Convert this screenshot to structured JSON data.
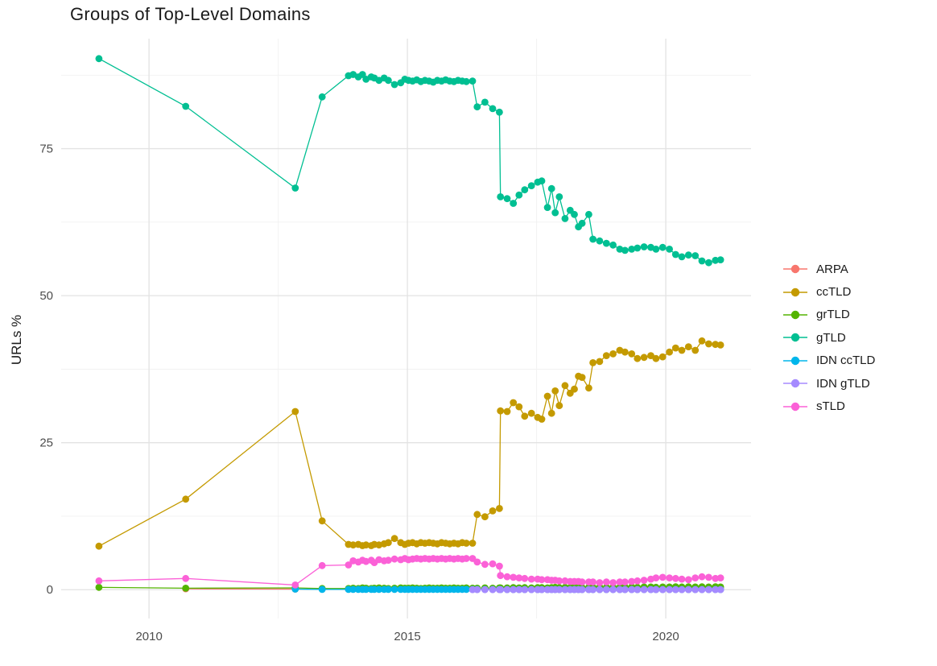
{
  "chart_data": {
    "type": "line",
    "title": "Groups of Top-Level Domains",
    "xlabel": "",
    "ylabel": "URLs %",
    "grid": true,
    "legend_position": "right",
    "x_axis": {
      "ticks": [
        2010,
        2015,
        2020
      ],
      "tick_labels": [
        "2010",
        "2015",
        "2020"
      ],
      "minor_ticks": [
        2012.5,
        2017.5
      ],
      "domain": [
        2008.3,
        2021.65
      ]
    },
    "y_axis": {
      "ticks": [
        0,
        25,
        50,
        75
      ],
      "tick_labels": [
        "0",
        "25",
        "50",
        "75"
      ],
      "minor_ticks": [
        12.5,
        37.5,
        62.5,
        87.5
      ],
      "domain": [
        -4.9,
        93.7
      ]
    },
    "series": [
      {
        "name": "ARPA",
        "color": "#F8766D",
        "x": [
          2010.71,
          2012.83,
          2013.35,
          2013.86,
          2013.95,
          2014.05,
          2014.13,
          2014.2,
          2014.3,
          2014.36,
          2014.45,
          2014.55,
          2014.63,
          2014.75,
          2014.87,
          2014.95,
          2015.02,
          2015.1,
          2015.18,
          2015.26,
          2015.34,
          2015.42,
          2015.5,
          2015.58,
          2015.66,
          2015.74,
          2015.82,
          2015.9,
          2015.98,
          2016.06,
          2016.14,
          2016.26,
          2016.35,
          2016.5,
          2016.65,
          2016.78,
          2016.8,
          2016.93,
          2017.05,
          2017.16,
          2017.27,
          2017.4,
          2017.52,
          2017.6,
          2017.71,
          2017.79,
          2017.86,
          2017.94,
          2018.05,
          2018.15,
          2018.23,
          2018.31,
          2018.38,
          2018.51,
          2018.59,
          2018.72,
          2018.85,
          2018.98,
          2019.11,
          2019.21,
          2019.34,
          2019.45,
          2019.58,
          2019.71,
          2019.81,
          2019.94,
          2020.07,
          2020.19,
          2020.31,
          2020.44,
          2020.57,
          2020.7,
          2020.83,
          2020.96,
          2021.06
        ],
        "y": [
          0.15,
          0.1,
          0.1,
          0.07,
          0.07,
          0.07,
          0.07,
          0.07,
          0.07,
          0.07,
          0.07,
          0.07,
          0.07,
          0.07,
          0.07,
          0.07,
          0.07,
          0.07,
          0.07,
          0.07,
          0.07,
          0.07,
          0.07,
          0.07,
          0.07,
          0.07,
          0.07,
          0.07,
          0.07,
          0.07,
          0.07,
          0.07,
          0.07,
          0.07,
          0.07,
          0.07,
          0.05,
          0.05,
          0.05,
          0.05,
          0.05,
          0.05,
          0.05,
          0.05,
          0.05,
          0.05,
          0.05,
          0.05,
          0.05,
          0.05,
          0.05,
          0.05,
          0.05,
          0.05,
          0.05,
          0.05,
          0.05,
          0.05,
          0.05,
          0.05,
          0.05,
          0.05,
          0.05,
          0.05,
          0.05,
          0.05,
          0.05,
          0.05,
          0.05,
          0.05,
          0.05,
          0.05,
          0.05,
          0.05,
          0.05
        ]
      },
      {
        "name": "ccTLD",
        "color": "#C49A00",
        "x": [
          2009.03,
          2010.71,
          2012.83,
          2013.35,
          2013.86,
          2013.95,
          2014.05,
          2014.13,
          2014.2,
          2014.3,
          2014.36,
          2014.45,
          2014.55,
          2014.63,
          2014.75,
          2014.87,
          2014.95,
          2015.02,
          2015.1,
          2015.18,
          2015.26,
          2015.34,
          2015.42,
          2015.5,
          2015.58,
          2015.66,
          2015.74,
          2015.82,
          2015.9,
          2015.98,
          2016.06,
          2016.14,
          2016.26,
          2016.35,
          2016.5,
          2016.65,
          2016.78,
          2016.8,
          2016.93,
          2017.05,
          2017.16,
          2017.27,
          2017.4,
          2017.52,
          2017.6,
          2017.71,
          2017.79,
          2017.86,
          2017.94,
          2018.05,
          2018.15,
          2018.23,
          2018.31,
          2018.38,
          2018.51,
          2018.59,
          2018.72,
          2018.85,
          2018.98,
          2019.11,
          2019.21,
          2019.34,
          2019.45,
          2019.58,
          2019.71,
          2019.81,
          2019.94,
          2020.07,
          2020.19,
          2020.31,
          2020.44,
          2020.57,
          2020.7,
          2020.83,
          2020.96,
          2021.06
        ],
        "y": [
          7.4,
          15.4,
          30.3,
          11.7,
          7.7,
          7.6,
          7.7,
          7.5,
          7.6,
          7.5,
          7.7,
          7.6,
          7.8,
          8.0,
          8.7,
          8.0,
          7.7,
          7.9,
          8.0,
          7.8,
          8.0,
          7.9,
          8.0,
          7.9,
          7.8,
          8.0,
          7.9,
          7.8,
          7.9,
          7.8,
          8.0,
          7.9,
          7.9,
          12.8,
          12.4,
          13.4,
          13.8,
          30.4,
          30.3,
          31.8,
          31.1,
          29.5,
          30.0,
          29.3,
          29.0,
          32.9,
          30.0,
          33.8,
          31.3,
          34.7,
          33.4,
          34.1,
          36.3,
          36.1,
          34.3,
          38.6,
          38.8,
          39.8,
          40.1,
          40.7,
          40.4,
          40.1,
          39.3,
          39.5,
          39.8,
          39.3,
          39.6,
          40.4,
          41.1,
          40.7,
          41.3,
          40.7,
          42.3,
          41.8,
          41.7,
          41.6
        ]
      },
      {
        "name": "grTLD",
        "color": "#53B400",
        "x": [
          2009.03,
          2010.71,
          2012.83,
          2013.35,
          2013.86,
          2013.95,
          2014.05,
          2014.13,
          2014.2,
          2014.3,
          2014.36,
          2014.45,
          2014.55,
          2014.63,
          2014.75,
          2014.87,
          2014.95,
          2015.02,
          2015.1,
          2015.18,
          2015.26,
          2015.34,
          2015.42,
          2015.5,
          2015.58,
          2015.66,
          2015.74,
          2015.82,
          2015.9,
          2015.98,
          2016.06,
          2016.14,
          2016.26,
          2016.35,
          2016.5,
          2016.65,
          2016.78,
          2016.8,
          2016.93,
          2017.05,
          2017.16,
          2017.27,
          2017.4,
          2017.52,
          2017.6,
          2017.71,
          2017.79,
          2017.86,
          2017.94,
          2018.05,
          2018.15,
          2018.23,
          2018.31,
          2018.38,
          2018.51,
          2018.59,
          2018.72,
          2018.85,
          2018.98,
          2019.11,
          2019.21,
          2019.34,
          2019.45,
          2019.58,
          2019.71,
          2019.81,
          2019.94,
          2020.07,
          2020.19,
          2020.31,
          2020.44,
          2020.57,
          2020.7,
          2020.83,
          2020.96,
          2021.06
        ],
        "y": [
          0.4,
          0.25,
          0.3,
          0.2,
          0.2,
          0.25,
          0.2,
          0.3,
          0.25,
          0.2,
          0.25,
          0.3,
          0.25,
          0.2,
          0.25,
          0.3,
          0.25,
          0.25,
          0.3,
          0.25,
          0.2,
          0.25,
          0.3,
          0.25,
          0.25,
          0.3,
          0.25,
          0.25,
          0.3,
          0.25,
          0.25,
          0.3,
          0.25,
          0.25,
          0.3,
          0.25,
          0.3,
          0.3,
          0.3,
          0.35,
          0.3,
          0.35,
          0.3,
          0.35,
          0.35,
          0.3,
          0.35,
          0.4,
          0.35,
          0.4,
          0.35,
          0.4,
          0.4,
          0.35,
          0.4,
          0.4,
          0.45,
          0.4,
          0.45,
          0.4,
          0.45,
          0.45,
          0.4,
          0.45,
          0.45,
          0.4,
          0.45,
          0.45,
          0.5,
          0.45,
          0.5,
          0.45,
          0.5,
          0.45,
          0.5,
          0.45
        ]
      },
      {
        "name": "gTLD",
        "color": "#00BF92",
        "x": [
          2009.03,
          2010.71,
          2012.83,
          2013.35,
          2013.86,
          2013.95,
          2014.05,
          2014.13,
          2014.2,
          2014.3,
          2014.36,
          2014.45,
          2014.55,
          2014.63,
          2014.75,
          2014.87,
          2014.95,
          2015.02,
          2015.1,
          2015.18,
          2015.26,
          2015.34,
          2015.42,
          2015.5,
          2015.58,
          2015.66,
          2015.74,
          2015.82,
          2015.9,
          2015.98,
          2016.06,
          2016.14,
          2016.26,
          2016.35,
          2016.5,
          2016.65,
          2016.78,
          2016.8,
          2016.93,
          2017.05,
          2017.16,
          2017.27,
          2017.4,
          2017.52,
          2017.6,
          2017.71,
          2017.79,
          2017.86,
          2017.94,
          2018.05,
          2018.15,
          2018.23,
          2018.31,
          2018.38,
          2018.51,
          2018.59,
          2018.72,
          2018.85,
          2018.98,
          2019.11,
          2019.21,
          2019.34,
          2019.45,
          2019.58,
          2019.71,
          2019.81,
          2019.94,
          2020.07,
          2020.19,
          2020.31,
          2020.44,
          2020.57,
          2020.7,
          2020.83,
          2020.96,
          2021.06
        ],
        "y": [
          90.3,
          82.2,
          68.3,
          83.8,
          87.4,
          87.6,
          87.2,
          87.6,
          86.8,
          87.2,
          87.0,
          86.6,
          87.0,
          86.6,
          85.9,
          86.2,
          86.8,
          86.6,
          86.5,
          86.7,
          86.4,
          86.6,
          86.5,
          86.3,
          86.6,
          86.5,
          86.7,
          86.5,
          86.4,
          86.6,
          86.5,
          86.4,
          86.5,
          82.1,
          82.9,
          81.8,
          81.2,
          66.8,
          66.5,
          65.7,
          67.1,
          68.0,
          68.7,
          69.3,
          69.5,
          65.0,
          68.2,
          64.1,
          66.8,
          63.1,
          64.5,
          63.8,
          61.7,
          62.3,
          63.8,
          59.6,
          59.3,
          58.9,
          58.6,
          57.9,
          57.7,
          57.9,
          58.1,
          58.3,
          58.2,
          57.9,
          58.2,
          57.9,
          57.0,
          56.6,
          56.9,
          56.8,
          55.9,
          55.6,
          56.0,
          56.1
        ]
      },
      {
        "name": "IDN ccTLD",
        "color": "#00B6EB",
        "x": [
          2012.83,
          2013.35,
          2013.86,
          2013.95,
          2014.05,
          2014.13,
          2014.2,
          2014.3,
          2014.36,
          2014.45,
          2014.55,
          2014.63,
          2014.75,
          2014.87,
          2014.95,
          2015.02,
          2015.1,
          2015.18,
          2015.26,
          2015.34,
          2015.42,
          2015.5,
          2015.58,
          2015.66,
          2015.74,
          2015.82,
          2015.9,
          2015.98,
          2016.06,
          2016.14,
          2016.26,
          2016.35,
          2016.5,
          2016.65,
          2016.78,
          2016.8,
          2016.93,
          2017.05,
          2017.16,
          2017.27,
          2017.4,
          2017.52,
          2017.6,
          2017.71,
          2017.79,
          2017.86,
          2017.94,
          2018.05,
          2018.15,
          2018.23,
          2018.31,
          2018.38,
          2018.51,
          2018.59,
          2018.72,
          2018.85,
          2018.98,
          2019.11,
          2019.21,
          2019.34,
          2019.45,
          2019.58,
          2019.71,
          2019.81,
          2019.94,
          2020.07,
          2020.19,
          2020.31,
          2020.44,
          2020.57,
          2020.7,
          2020.83,
          2020.96,
          2021.06
        ],
        "y": [
          0.1,
          0.05,
          0.04,
          0.04,
          0.04,
          0.04,
          0.04,
          0.04,
          0.04,
          0.04,
          0.04,
          0.04,
          0.04,
          0.04,
          0.04,
          0.04,
          0.04,
          0.04,
          0.04,
          0.04,
          0.04,
          0.04,
          0.04,
          0.04,
          0.04,
          0.04,
          0.04,
          0.04,
          0.04,
          0.04,
          0.04,
          0.04,
          0.04,
          0.04,
          0.04,
          0.03,
          0.03,
          0.03,
          0.03,
          0.03,
          0.03,
          0.03,
          0.03,
          0.03,
          0.03,
          0.03,
          0.03,
          0.03,
          0.03,
          0.03,
          0.03,
          0.03,
          0.03,
          0.03,
          0.03,
          0.03,
          0.03,
          0.03,
          0.03,
          0.03,
          0.03,
          0.03,
          0.03,
          0.03,
          0.03,
          0.03,
          0.03,
          0.03,
          0.03,
          0.03,
          0.03,
          0.03,
          0.03,
          0.03
        ]
      },
      {
        "name": "IDN gTLD",
        "color": "#A58AFF",
        "x": [
          2016.26,
          2016.35,
          2016.5,
          2016.65,
          2016.78,
          2016.8,
          2016.93,
          2017.05,
          2017.16,
          2017.27,
          2017.4,
          2017.52,
          2017.6,
          2017.71,
          2017.79,
          2017.86,
          2017.94,
          2018.05,
          2018.15,
          2018.23,
          2018.31,
          2018.38,
          2018.51,
          2018.59,
          2018.72,
          2018.85,
          2018.98,
          2019.11,
          2019.21,
          2019.34,
          2019.45,
          2019.58,
          2019.71,
          2019.81,
          2019.94,
          2020.07,
          2020.19,
          2020.31,
          2020.44,
          2020.57,
          2020.7,
          2020.83,
          2020.96,
          2021.06
        ],
        "y": [
          0.02,
          0.02,
          0.02,
          0.02,
          0.02,
          0.02,
          0.02,
          0.02,
          0.02,
          0.02,
          0.02,
          0.02,
          0.02,
          0.02,
          0.02,
          0.02,
          0.02,
          0.02,
          0.02,
          0.02,
          0.02,
          0.02,
          0.02,
          0.02,
          0.02,
          0.02,
          0.02,
          0.02,
          0.02,
          0.02,
          0.02,
          0.02,
          0.02,
          0.02,
          0.02,
          0.02,
          0.02,
          0.02,
          0.02,
          0.02,
          0.02,
          0.02,
          0.02,
          0.02
        ]
      },
      {
        "name": "sTLD",
        "color": "#FB61D7",
        "x": [
          2009.03,
          2010.71,
          2012.83,
          2013.35,
          2013.86,
          2013.95,
          2014.05,
          2014.13,
          2014.2,
          2014.3,
          2014.36,
          2014.45,
          2014.55,
          2014.63,
          2014.75,
          2014.87,
          2014.95,
          2015.02,
          2015.1,
          2015.18,
          2015.26,
          2015.34,
          2015.42,
          2015.5,
          2015.58,
          2015.66,
          2015.74,
          2015.82,
          2015.9,
          2015.98,
          2016.06,
          2016.14,
          2016.26,
          2016.35,
          2016.5,
          2016.65,
          2016.78,
          2016.8,
          2016.93,
          2017.05,
          2017.16,
          2017.27,
          2017.4,
          2017.52,
          2017.6,
          2017.71,
          2017.79,
          2017.86,
          2017.94,
          2018.05,
          2018.15,
          2018.23,
          2018.31,
          2018.38,
          2018.51,
          2018.59,
          2018.72,
          2018.85,
          2018.98,
          2019.11,
          2019.21,
          2019.34,
          2019.45,
          2019.58,
          2019.71,
          2019.81,
          2019.94,
          2020.07,
          2020.19,
          2020.31,
          2020.44,
          2020.57,
          2020.7,
          2020.83,
          2020.96,
          2021.06
        ],
        "y": [
          1.5,
          1.9,
          0.8,
          4.1,
          4.2,
          4.9,
          4.7,
          5.0,
          4.8,
          5.0,
          4.6,
          5.1,
          4.9,
          5.0,
          5.2,
          5.1,
          5.3,
          5.1,
          5.2,
          5.3,
          5.2,
          5.3,
          5.2,
          5.3,
          5.2,
          5.3,
          5.2,
          5.3,
          5.2,
          5.3,
          5.2,
          5.3,
          5.3,
          4.7,
          4.3,
          4.4,
          4.0,
          2.4,
          2.2,
          2.1,
          2.0,
          1.9,
          1.8,
          1.8,
          1.7,
          1.7,
          1.6,
          1.6,
          1.5,
          1.5,
          1.4,
          1.4,
          1.4,
          1.3,
          1.3,
          1.3,
          1.2,
          1.3,
          1.2,
          1.3,
          1.3,
          1.4,
          1.5,
          1.6,
          1.8,
          2.0,
          2.1,
          2.0,
          1.9,
          1.8,
          1.7,
          2.0,
          2.2,
          2.1,
          1.9,
          2.0
        ]
      }
    ]
  },
  "colors": {
    "background": "#ffffff",
    "grid_major": "#e3e3e3",
    "grid_minor": "#f1f1f1",
    "axis_text": "#4d4d4d",
    "title_text": "#1a1a1a"
  }
}
